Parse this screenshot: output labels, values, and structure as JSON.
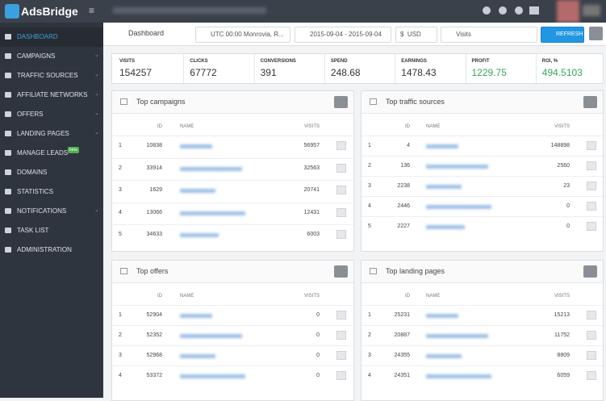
{
  "sidebar": {
    "logo": "AdsBridge",
    "items": [
      "DASHBOARD",
      "CAMPAIGNS",
      "TRAFFIC SOURCES",
      "AFFILIATE NETWORKS",
      "OFFERS",
      "LANDING PAGES",
      "MANAGE LEADS",
      "DOMAINS",
      "STATISTICS",
      "NOTIFICATIONS",
      "TASK LIST",
      "ADMINISTRATION"
    ],
    "badge": "beta"
  },
  "toolbar": {
    "title": "Dashboard",
    "timezone": "UTC 00:00 Monrovia, R...",
    "dates": "2015-09-04 - 2015-09-04",
    "currency_symbol": "$",
    "currency": "USD",
    "metric": "Visits",
    "refresh": "REFRESH"
  },
  "stats": [
    {
      "label": "VISITS",
      "value": "154257"
    },
    {
      "label": "CLICKS",
      "value": "67772"
    },
    {
      "label": "CONVERSIONS",
      "value": "391"
    },
    {
      "label": "SPEND",
      "value": "248.68"
    },
    {
      "label": "EARNINGS",
      "value": "1478.43"
    },
    {
      "label": "PROFIT",
      "value": "1229.75"
    },
    {
      "label": "ROI, %",
      "value": "494.5103"
    }
  ],
  "panels": [
    {
      "title": "Top campaigns",
      "columns": [
        "ID",
        "NAME",
        "VISITS"
      ],
      "rows": [
        [
          "1",
          "10838",
          "56957"
        ],
        [
          "2",
          "33914",
          "32563"
        ],
        [
          "3",
          "1629",
          "20741"
        ],
        [
          "4",
          "13066",
          "12431"
        ],
        [
          "5",
          "34633",
          "6003"
        ]
      ]
    },
    {
      "title": "Top traffic sources",
      "columns": [
        "ID",
        "NAME",
        "VISITS"
      ],
      "rows": [
        [
          "1",
          "4",
          "148898"
        ],
        [
          "2",
          "136",
          "2560"
        ],
        [
          "3",
          "2238",
          "23"
        ],
        [
          "4",
          "2446",
          "0"
        ],
        [
          "5",
          "2227",
          "0"
        ]
      ]
    },
    {
      "title": "Top offers",
      "columns": [
        "ID",
        "NAME",
        "VISITS"
      ],
      "rows": [
        [
          "1",
          "52904",
          "0"
        ],
        [
          "2",
          "52352",
          "0"
        ],
        [
          "3",
          "52968",
          "0"
        ],
        [
          "4",
          "53372",
          "0"
        ]
      ]
    },
    {
      "title": "Top landing pages",
      "columns": [
        "ID",
        "NAME",
        "VISITS"
      ],
      "rows": [
        [
          "1",
          "25231",
          "15213"
        ],
        [
          "2",
          "20887",
          "11752"
        ],
        [
          "3",
          "24355",
          "8809"
        ],
        [
          "4",
          "24351",
          "6059"
        ]
      ]
    }
  ]
}
